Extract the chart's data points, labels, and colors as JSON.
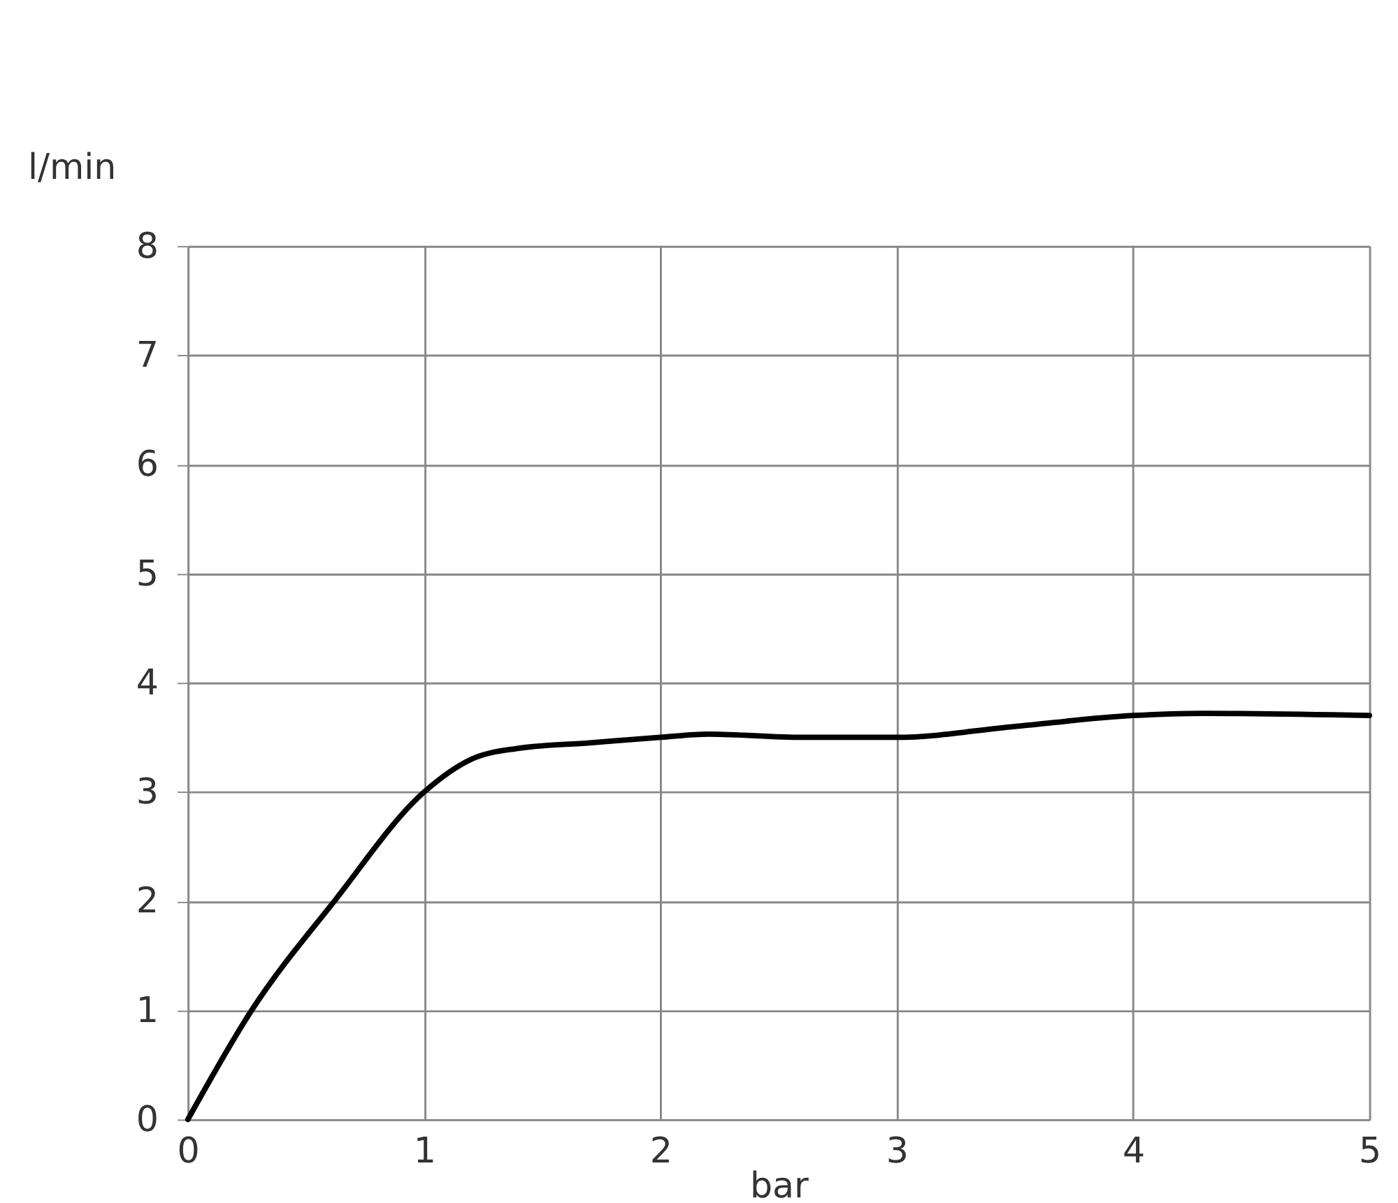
{
  "chart_data": {
    "type": "line",
    "xlabel": "bar",
    "ylabel": "l/min",
    "x": [
      0,
      0.27,
      0.62,
      1.0,
      1.2,
      1.4,
      1.7,
      2.0,
      2.2,
      2.6,
      3.0,
      3.5,
      4.0,
      4.3,
      5.0
    ],
    "series": [
      {
        "color": "#000000",
        "values": [
          0,
          1,
          2,
          3,
          3.3,
          3.4,
          3.45,
          3.5,
          3.53,
          3.5,
          3.5,
          3.6,
          3.7,
          3.72,
          3.7
        ]
      }
    ],
    "xlim": [
      0,
      5
    ],
    "xticks": [
      0,
      1,
      2,
      3,
      4,
      5
    ],
    "ylim": [
      0,
      8
    ],
    "yticks": [
      0,
      1,
      2,
      3,
      4,
      5,
      6,
      7,
      8
    ],
    "grid": true,
    "marker": "none",
    "line_style": "solid"
  }
}
